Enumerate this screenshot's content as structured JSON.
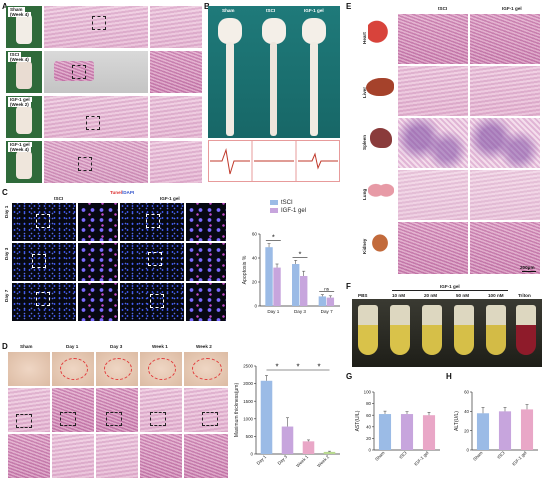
{
  "panel_labels": {
    "A": "A",
    "B": "B",
    "C": "C",
    "D": "D",
    "E": "E",
    "F": "F",
    "G": "G",
    "H": "H"
  },
  "panelA": {
    "rows": [
      {
        "line1": "Sham",
        "line2": "(Week 4)"
      },
      {
        "line1": "tSCI",
        "line2": "(Week 4)"
      },
      {
        "line1": "IGF-1 gel",
        "line2": "(Week 2)"
      },
      {
        "line1": "IGF-1 gel",
        "line2": "(Week 4)"
      }
    ]
  },
  "panelB": {
    "cols": [
      "Sham",
      "tSCI",
      "IGF-1 gel"
    ]
  },
  "panelC": {
    "header_stain_a": "Tunel",
    "header_stain_b": "/DAPI",
    "groups": [
      "tSCI",
      "IGF-1 gel"
    ],
    "rows": [
      "Day 1",
      "Day 3",
      "Day 7"
    ]
  },
  "panelD": {
    "cols": [
      "Sham",
      "Day 1",
      "Day 3",
      "Week 1",
      "Week 2"
    ]
  },
  "panelE": {
    "cols": [
      "tSCI",
      "IGF-1 gel"
    ],
    "organs": [
      "Heart",
      "Liver",
      "Spleen",
      "Lung",
      "Kidney"
    ],
    "scale": "200μm"
  },
  "panelF": {
    "group_header": "IGF-1 gel",
    "tubes": [
      "PBS",
      "10 nM",
      "20 nM",
      "50 nM",
      "100 nM",
      "Triton"
    ]
  },
  "chart_data": [
    {
      "type": "bar",
      "title": "",
      "ylabel": "Apoptosis %",
      "categories": [
        "Day 1",
        "Day 3",
        "Day 7"
      ],
      "ylim": [
        0,
        60
      ],
      "yticks": [
        0,
        20,
        40,
        60
      ],
      "legend": "top-right",
      "series": [
        {
          "name": "tSCI",
          "color": "#9bbbe6",
          "values": [
            49,
            35,
            8
          ],
          "errors": [
            3,
            3,
            1.5
          ]
        },
        {
          "name": "IGF-1 gel",
          "color": "#c7a5dd",
          "values": [
            32,
            25,
            7
          ],
          "errors": [
            3,
            4,
            1.5
          ]
        }
      ],
      "annotations": [
        "*",
        "*",
        "ns"
      ]
    },
    {
      "type": "bar",
      "title": "",
      "ylabel": "Maximum thickness(μm)",
      "categories": [
        "Day 1",
        "Day 3",
        "Week 1",
        "Week 2"
      ],
      "ylim": [
        0,
        2500
      ],
      "yticks": [
        0,
        500,
        1000,
        1500,
        2000,
        2500
      ],
      "colors": [
        "#9bbbe6",
        "#c7a5dd",
        "#e9a7c7",
        "#b8d98f"
      ],
      "values": [
        2080,
        780,
        360,
        60
      ],
      "errors": [
        150,
        250,
        40,
        20
      ],
      "annotations": [
        "*",
        "*",
        "*"
      ]
    },
    {
      "type": "bar",
      "title": "",
      "ylabel": "AST(U/L)",
      "categories": [
        "Sham",
        "tSCI",
        "IGF-1 gel"
      ],
      "ylim": [
        0,
        100
      ],
      "yticks": [
        0,
        20,
        40,
        60,
        80,
        100
      ],
      "colors": [
        "#9bbbe6",
        "#c7a5dd",
        "#e9a7c7"
      ],
      "values": [
        62,
        62,
        60
      ],
      "errors": [
        5,
        4,
        5
      ]
    },
    {
      "type": "bar",
      "title": "",
      "ylabel": "ALT(U/L)",
      "categories": [
        "Sham",
        "tSCI",
        "IGF-1 gel"
      ],
      "ylim": [
        0,
        60
      ],
      "yticks": [
        0,
        20,
        40,
        60
      ],
      "colors": [
        "#9bbbe6",
        "#c7a5dd",
        "#e9a7c7"
      ],
      "values": [
        38,
        40,
        42
      ],
      "errors": [
        6,
        4,
        5
      ]
    }
  ]
}
